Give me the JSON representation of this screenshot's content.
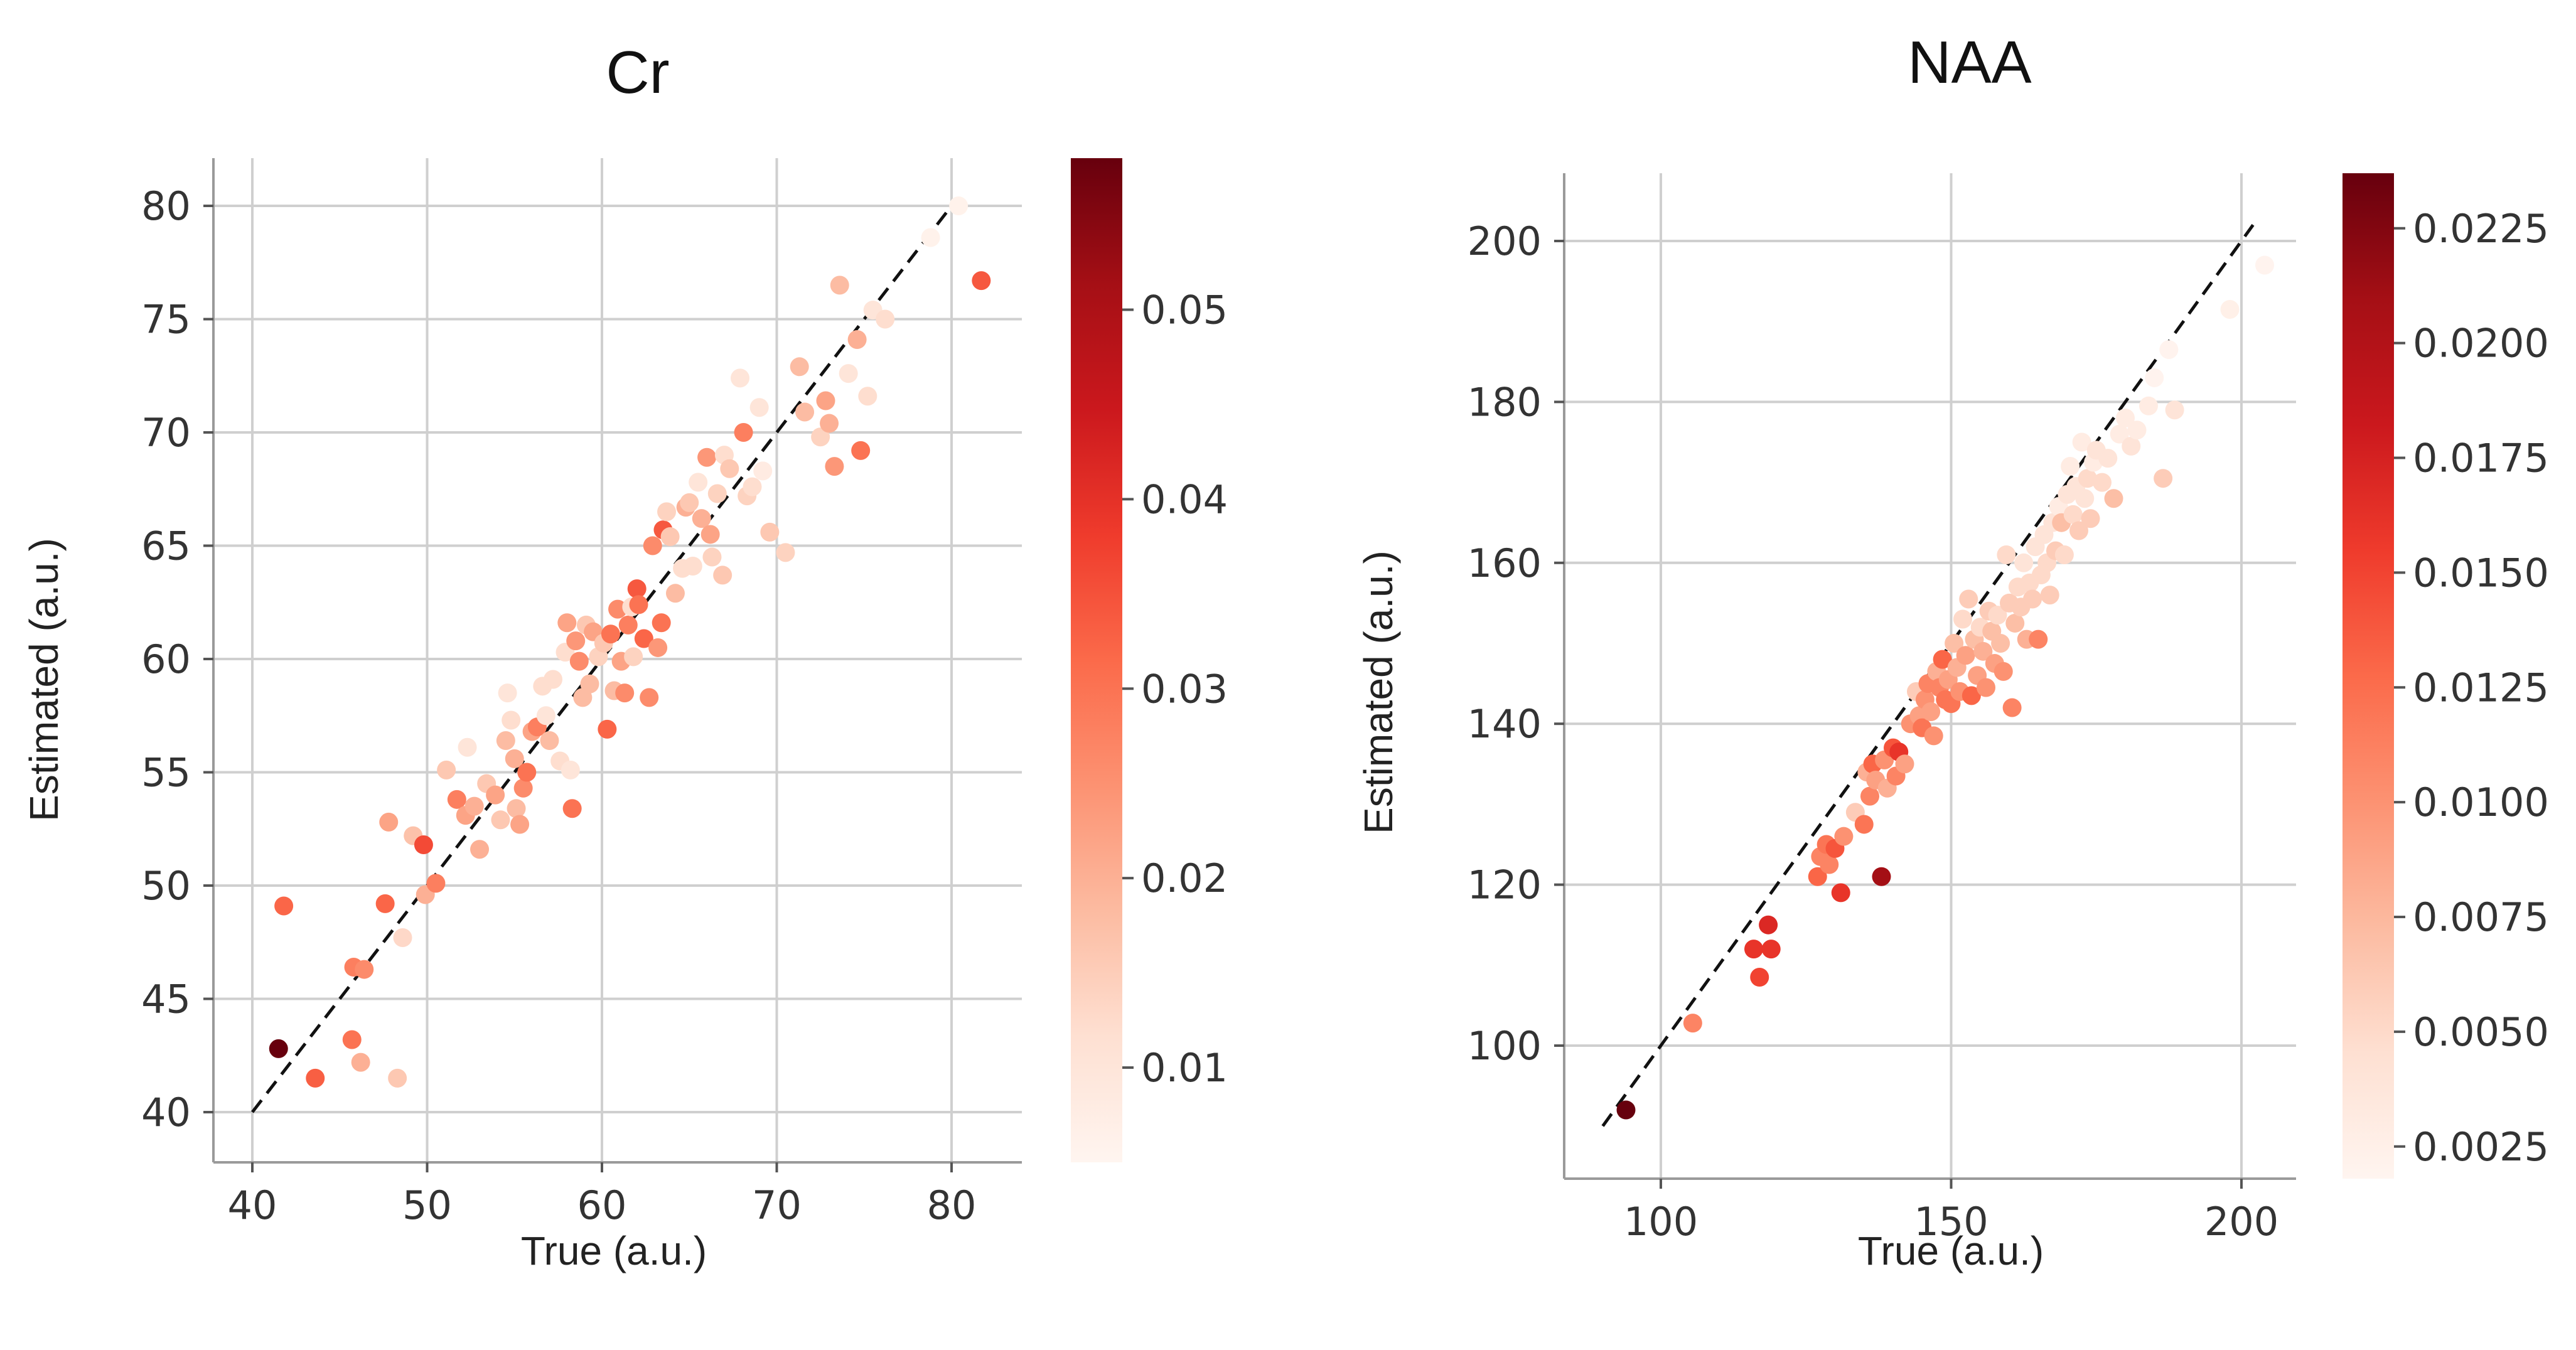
{
  "chart_data": [
    {
      "type": "scatter",
      "title": "Cr",
      "xlabel": "True (a.u.)",
      "ylabel": "Estimated (a.u.)",
      "xlim": [
        38,
        84
      ],
      "ylim": [
        38,
        82
      ],
      "xticks": [
        40,
        50,
        60,
        70,
        80
      ],
      "yticks": [
        40,
        45,
        50,
        55,
        60,
        65,
        70,
        75,
        80
      ],
      "identity_line": [
        40,
        80
      ],
      "colorbar": {
        "cmap": "Reds",
        "range": [
          0.005,
          0.058
        ],
        "ticks": [
          0.01,
          0.02,
          0.03,
          0.04,
          0.05
        ],
        "tick_labels": [
          "0.01",
          "0.02",
          "0.03",
          "0.04",
          "0.05"
        ]
      },
      "points": [
        [
          41.5,
          42.8,
          0.058
        ],
        [
          41.8,
          49.1,
          0.032
        ],
        [
          43.6,
          41.5,
          0.033
        ],
        [
          45.7,
          43.2,
          0.03
        ],
        [
          46.2,
          42.2,
          0.02
        ],
        [
          45.8,
          46.4,
          0.028
        ],
        [
          46.4,
          46.3,
          0.026
        ],
        [
          47.6,
          49.2,
          0.032
        ],
        [
          47.8,
          52.8,
          0.022
        ],
        [
          48.3,
          41.5,
          0.016
        ],
        [
          48.6,
          47.7,
          0.013
        ],
        [
          49.2,
          52.2,
          0.017
        ],
        [
          49.8,
          51.8,
          0.036
        ],
        [
          49.9,
          49.6,
          0.02
        ],
        [
          50.5,
          50.1,
          0.028
        ],
        [
          51.1,
          55.1,
          0.016
        ],
        [
          51.7,
          53.8,
          0.028
        ],
        [
          52.2,
          53.1,
          0.022
        ],
        [
          52.3,
          56.1,
          0.01
        ],
        [
          52.7,
          53.5,
          0.02
        ],
        [
          53.0,
          51.6,
          0.02
        ],
        [
          53.4,
          54.5,
          0.016
        ],
        [
          53.9,
          54.0,
          0.022
        ],
        [
          54.2,
          52.9,
          0.016
        ],
        [
          54.5,
          56.4,
          0.018
        ],
        [
          54.6,
          58.5,
          0.01
        ],
        [
          54.8,
          57.3,
          0.012
        ],
        [
          55.0,
          55.6,
          0.02
        ],
        [
          55.1,
          53.4,
          0.018
        ],
        [
          55.3,
          52.7,
          0.022
        ],
        [
          55.5,
          54.3,
          0.026
        ],
        [
          55.7,
          55.0,
          0.03
        ],
        [
          56.0,
          56.8,
          0.022
        ],
        [
          56.3,
          57.0,
          0.028
        ],
        [
          56.6,
          58.8,
          0.012
        ],
        [
          56.8,
          57.5,
          0.01
        ],
        [
          57.0,
          56.4,
          0.018
        ],
        [
          57.2,
          59.1,
          0.012
        ],
        [
          57.6,
          55.5,
          0.012
        ],
        [
          57.9,
          60.3,
          0.012
        ],
        [
          58.0,
          61.6,
          0.022
        ],
        [
          58.2,
          55.1,
          0.01
        ],
        [
          58.3,
          53.4,
          0.03
        ],
        [
          58.5,
          60.8,
          0.024
        ],
        [
          58.7,
          59.9,
          0.026
        ],
        [
          58.9,
          58.3,
          0.018
        ],
        [
          59.1,
          61.5,
          0.016
        ],
        [
          59.3,
          58.9,
          0.018
        ],
        [
          59.5,
          61.2,
          0.022
        ],
        [
          59.8,
          60.1,
          0.014
        ],
        [
          60.1,
          60.7,
          0.016
        ],
        [
          60.3,
          56.9,
          0.032
        ],
        [
          60.5,
          61.1,
          0.03
        ],
        [
          60.7,
          58.6,
          0.018
        ],
        [
          60.9,
          62.2,
          0.026
        ],
        [
          61.1,
          59.9,
          0.022
        ],
        [
          61.3,
          58.5,
          0.026
        ],
        [
          61.5,
          61.5,
          0.028
        ],
        [
          61.7,
          62.3,
          0.012
        ],
        [
          61.8,
          60.1,
          0.014
        ],
        [
          62.0,
          63.1,
          0.034
        ],
        [
          62.1,
          62.4,
          0.03
        ],
        [
          62.4,
          60.9,
          0.032
        ],
        [
          62.7,
          58.3,
          0.026
        ],
        [
          62.9,
          65.0,
          0.026
        ],
        [
          63.2,
          60.5,
          0.024
        ],
        [
          63.4,
          61.6,
          0.03
        ],
        [
          63.5,
          65.7,
          0.034
        ],
        [
          63.7,
          66.5,
          0.014
        ],
        [
          63.9,
          65.4,
          0.016
        ],
        [
          64.2,
          62.9,
          0.018
        ],
        [
          64.6,
          64.0,
          0.012
        ],
        [
          64.8,
          66.7,
          0.02
        ],
        [
          65.0,
          66.9,
          0.016
        ],
        [
          65.2,
          64.1,
          0.012
        ],
        [
          65.5,
          67.8,
          0.01
        ],
        [
          65.7,
          66.2,
          0.02
        ],
        [
          66.0,
          68.9,
          0.024
        ],
        [
          66.2,
          65.5,
          0.022
        ],
        [
          66.3,
          64.5,
          0.014
        ],
        [
          66.6,
          67.3,
          0.014
        ],
        [
          66.9,
          63.7,
          0.016
        ],
        [
          67.0,
          69.0,
          0.012
        ],
        [
          67.3,
          68.4,
          0.016
        ],
        [
          67.9,
          72.4,
          0.01
        ],
        [
          68.1,
          70.0,
          0.028
        ],
        [
          68.3,
          67.2,
          0.014
        ],
        [
          68.6,
          67.6,
          0.012
        ],
        [
          69.0,
          71.1,
          0.01
        ],
        [
          69.2,
          68.3,
          0.008
        ],
        [
          69.6,
          65.6,
          0.016
        ],
        [
          70.5,
          64.7,
          0.014
        ],
        [
          71.3,
          72.9,
          0.018
        ],
        [
          71.6,
          70.9,
          0.018
        ],
        [
          72.5,
          69.8,
          0.014
        ],
        [
          72.8,
          71.4,
          0.022
        ],
        [
          73.0,
          70.4,
          0.02
        ],
        [
          73.3,
          68.5,
          0.024
        ],
        [
          73.6,
          76.5,
          0.018
        ],
        [
          74.1,
          72.6,
          0.01
        ],
        [
          74.6,
          74.1,
          0.02
        ],
        [
          74.8,
          69.2,
          0.03
        ],
        [
          75.2,
          71.6,
          0.012
        ],
        [
          75.5,
          75.4,
          0.01
        ],
        [
          76.2,
          75.0,
          0.012
        ],
        [
          78.8,
          78.6,
          0.006
        ],
        [
          80.4,
          80.0,
          0.006
        ],
        [
          81.7,
          76.7,
          0.034
        ]
      ]
    },
    {
      "type": "scatter",
      "title": "NAA",
      "xlabel": "True (a.u.)",
      "ylabel": "Estimated (a.u.)",
      "xlim": [
        83,
        210
      ],
      "ylim": [
        84,
        209
      ],
      "xticks": [
        100,
        150,
        200
      ],
      "yticks": [
        100,
        120,
        140,
        160,
        180,
        200
      ],
      "identity_line": [
        90,
        202
      ],
      "colorbar": {
        "cmap": "Reds",
        "range": [
          0.0018,
          0.0237
        ],
        "ticks": [
          0.0025,
          0.005,
          0.0075,
          0.01,
          0.0125,
          0.015,
          0.0175,
          0.02,
          0.0225
        ],
        "tick_labels": [
          "0.0025",
          "0.0050",
          "0.0075",
          "0.0100",
          "0.0125",
          "0.0150",
          "0.0175",
          "0.0200",
          "0.0225"
        ]
      },
      "points": [
        [
          94.0,
          92.0,
          0.0237
        ],
        [
          105.5,
          102.8,
          0.011
        ],
        [
          116.0,
          112.0,
          0.016
        ],
        [
          117.0,
          108.5,
          0.015
        ],
        [
          118.5,
          115.0,
          0.017
        ],
        [
          119.0,
          112.0,
          0.016
        ],
        [
          127.0,
          121.0,
          0.013
        ],
        [
          127.5,
          123.5,
          0.011
        ],
        [
          128.5,
          125.0,
          0.012
        ],
        [
          129.0,
          122.5,
          0.011
        ],
        [
          130.0,
          124.5,
          0.014
        ],
        [
          131.0,
          119.0,
          0.016
        ],
        [
          131.5,
          126.0,
          0.01
        ],
        [
          133.5,
          129.0,
          0.006
        ],
        [
          135.0,
          127.5,
          0.012
        ],
        [
          135.5,
          134.0,
          0.008
        ],
        [
          136.0,
          131.0,
          0.011
        ],
        [
          136.5,
          135.0,
          0.013
        ],
        [
          137.0,
          133.0,
          0.009
        ],
        [
          138.0,
          121.0,
          0.021
        ],
        [
          138.5,
          135.5,
          0.01
        ],
        [
          139.0,
          132.0,
          0.008
        ],
        [
          140.0,
          137.0,
          0.014
        ],
        [
          140.5,
          133.5,
          0.011
        ],
        [
          141.0,
          136.5,
          0.016
        ],
        [
          142.0,
          135.0,
          0.009
        ],
        [
          143.0,
          140.0,
          0.01
        ],
        [
          144.0,
          144.0,
          0.006
        ],
        [
          144.5,
          141.0,
          0.009
        ],
        [
          145.0,
          139.5,
          0.012
        ],
        [
          145.5,
          143.0,
          0.01
        ],
        [
          146.0,
          145.0,
          0.011
        ],
        [
          146.5,
          141.5,
          0.009
        ],
        [
          147.0,
          138.5,
          0.01
        ],
        [
          147.5,
          146.5,
          0.008
        ],
        [
          148.0,
          144.5,
          0.011
        ],
        [
          148.5,
          148.0,
          0.013
        ],
        [
          149.0,
          143.0,
          0.012
        ],
        [
          149.5,
          145.5,
          0.009
        ],
        [
          150.0,
          142.5,
          0.012
        ],
        [
          150.5,
          150.0,
          0.007
        ],
        [
          151.0,
          147.0,
          0.008
        ],
        [
          151.5,
          144.0,
          0.01
        ],
        [
          152.0,
          153.0,
          0.005
        ],
        [
          152.5,
          148.5,
          0.009
        ],
        [
          153.0,
          155.5,
          0.006
        ],
        [
          153.5,
          143.5,
          0.013
        ],
        [
          154.0,
          150.5,
          0.007
        ],
        [
          154.5,
          146.0,
          0.009
        ],
        [
          155.0,
          152.0,
          0.005
        ],
        [
          155.5,
          149.0,
          0.008
        ],
        [
          156.0,
          144.5,
          0.01
        ],
        [
          156.5,
          154.0,
          0.006
        ],
        [
          157.0,
          151.5,
          0.007
        ],
        [
          157.5,
          147.5,
          0.009
        ],
        [
          158.0,
          153.5,
          0.005
        ],
        [
          158.5,
          150.0,
          0.007
        ],
        [
          159.0,
          146.5,
          0.01
        ],
        [
          159.5,
          161.0,
          0.005
        ],
        [
          160.0,
          155.0,
          0.006
        ],
        [
          160.5,
          142.0,
          0.011
        ],
        [
          161.0,
          152.5,
          0.007
        ],
        [
          161.5,
          157.0,
          0.005
        ],
        [
          162.0,
          154.5,
          0.006
        ],
        [
          162.5,
          160.0,
          0.004
        ],
        [
          163.0,
          150.5,
          0.008
        ],
        [
          163.5,
          157.5,
          0.005
        ],
        [
          164.0,
          155.5,
          0.006
        ],
        [
          164.5,
          162.0,
          0.004
        ],
        [
          165.0,
          150.5,
          0.011
        ],
        [
          165.5,
          158.5,
          0.005
        ],
        [
          166.0,
          163.5,
          0.004
        ],
        [
          166.5,
          160.0,
          0.005
        ],
        [
          167.0,
          156.0,
          0.006
        ],
        [
          167.5,
          165.0,
          0.004
        ],
        [
          168.0,
          161.5,
          0.006
        ],
        [
          168.5,
          167.0,
          0.003
        ],
        [
          169.0,
          165.0,
          0.007
        ],
        [
          169.5,
          161.0,
          0.005
        ],
        [
          170.0,
          168.5,
          0.004
        ],
        [
          170.5,
          172.0,
          0.003
        ],
        [
          171.0,
          166.0,
          0.005
        ],
        [
          171.5,
          169.5,
          0.004
        ],
        [
          172.0,
          164.0,
          0.006
        ],
        [
          172.5,
          175.0,
          0.003
        ],
        [
          173.0,
          168.0,
          0.004
        ],
        [
          173.5,
          170.5,
          0.005
        ],
        [
          174.0,
          165.5,
          0.006
        ],
        [
          174.5,
          172.5,
          0.003
        ],
        [
          175.0,
          174.0,
          0.004
        ],
        [
          176.0,
          170.0,
          0.005
        ],
        [
          177.0,
          173.0,
          0.004
        ],
        [
          178.0,
          168.0,
          0.007
        ],
        [
          179.0,
          176.0,
          0.003
        ],
        [
          180.0,
          178.0,
          0.003
        ],
        [
          181.0,
          174.5,
          0.004
        ],
        [
          182.0,
          176.5,
          0.003
        ],
        [
          184.0,
          179.5,
          0.003
        ],
        [
          185.0,
          183.0,
          0.002
        ],
        [
          186.5,
          170.5,
          0.006
        ],
        [
          187.5,
          186.5,
          0.002
        ],
        [
          188.5,
          179.0,
          0.004
        ],
        [
          198.0,
          191.5,
          0.0025
        ],
        [
          204.0,
          197.0,
          0.002
        ]
      ]
    }
  ]
}
